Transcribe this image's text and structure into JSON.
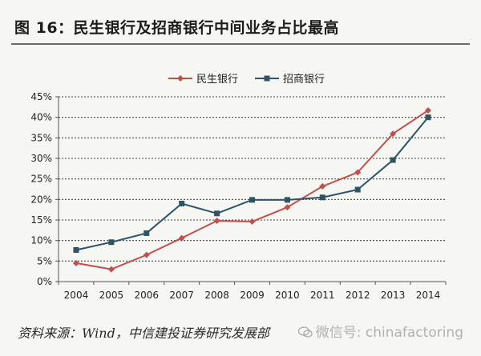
{
  "header": {
    "title": "图 16：民生银行及招商银行中间业务占比最高"
  },
  "footer": {
    "source": "资料来源：Wind，中信建投证券研究发展部",
    "watermark": "微信号: chinafactoring",
    "watermark_icon": "wechat-icon"
  },
  "chart_data": {
    "type": "line",
    "categories": [
      "2004",
      "2005",
      "2006",
      "2007",
      "2008",
      "2009",
      "2010",
      "2011",
      "2012",
      "2013",
      "2014"
    ],
    "series": [
      {
        "name": "民生银行",
        "color": "#c0504d",
        "marker": "diamond",
        "values": [
          4.5,
          3.0,
          6.5,
          10.6,
          14.8,
          14.6,
          18.1,
          23.2,
          26.6,
          36.0,
          41.7
        ]
      },
      {
        "name": "招商银行",
        "color": "#2d5566",
        "marker": "square",
        "values": [
          7.7,
          9.6,
          11.8,
          19.0,
          16.6,
          19.9,
          19.9,
          20.5,
          22.4,
          29.6,
          40.0
        ]
      }
    ],
    "y_ticks": [
      "0%",
      "5%",
      "10%",
      "15%",
      "20%",
      "25%",
      "30%",
      "35%",
      "40%",
      "45%"
    ],
    "ylim": [
      0,
      45
    ],
    "grid": true,
    "legend_position": "top-center"
  }
}
